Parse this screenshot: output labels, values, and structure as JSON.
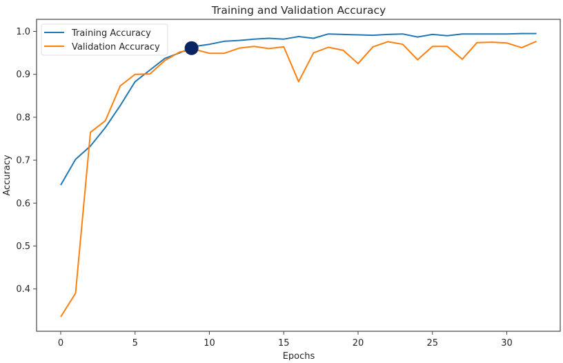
{
  "chart_data": {
    "type": "line",
    "title": "Training and Validation Accuracy",
    "xlabel": "Epochs",
    "ylabel": "Accuracy",
    "xlim": [
      -1.6,
      33.6
    ],
    "ylim": [
      0.305,
      1.027
    ],
    "xticks": [
      0,
      5,
      10,
      15,
      20,
      25,
      30
    ],
    "yticks": [
      0.4,
      0.5,
      0.6,
      0.7,
      0.8,
      0.9,
      1.0
    ],
    "grid": false,
    "legend_position": "upper left",
    "x": [
      0,
      1,
      2,
      3,
      4,
      5,
      6,
      7,
      8,
      9,
      10,
      11,
      12,
      13,
      14,
      15,
      16,
      17,
      18,
      19,
      20,
      21,
      22,
      23,
      24,
      25,
      26,
      27,
      28,
      29,
      30,
      31,
      32
    ],
    "series": [
      {
        "name": "Training Accuracy",
        "color": "#1f77b4",
        "values": [
          0.642,
          0.702,
          0.733,
          0.776,
          0.827,
          0.883,
          0.91,
          0.937,
          0.95,
          0.965,
          0.97,
          0.977,
          0.979,
          0.982,
          0.984,
          0.982,
          0.988,
          0.984,
          0.994,
          0.993,
          0.992,
          0.991,
          0.993,
          0.994,
          0.987,
          0.993,
          0.99,
          0.994,
          0.994,
          0.994,
          0.994,
          0.995,
          0.995
        ]
      },
      {
        "name": "Validation Accuracy",
        "color": "#ff7f0e",
        "values": [
          0.335,
          0.39,
          0.765,
          0.792,
          0.873,
          0.9,
          0.901,
          0.932,
          0.952,
          0.958,
          0.949,
          0.949,
          0.961,
          0.965,
          0.96,
          0.964,
          0.883,
          0.95,
          0.963,
          0.956,
          0.925,
          0.964,
          0.976,
          0.97,
          0.934,
          0.965,
          0.965,
          0.935,
          0.974,
          0.975,
          0.973,
          0.962,
          0.977
        ]
      }
    ],
    "annotations": [
      {
        "type": "marker",
        "x": 8.8,
        "y": 0.961,
        "color": "#0a2463",
        "shape": "circle"
      }
    ]
  },
  "chart": {
    "title": "Training and Validation Accuracy",
    "xlabel": "Epochs",
    "ylabel": "Accuracy",
    "legend": {
      "training": "Training Accuracy",
      "validation": "Validation Accuracy"
    },
    "xtick_labels": [
      "0",
      "5",
      "10",
      "15",
      "20",
      "25",
      "30"
    ],
    "ytick_labels": [
      "0.4",
      "0.5",
      "0.6",
      "0.7",
      "0.8",
      "0.9",
      "1.0"
    ]
  }
}
